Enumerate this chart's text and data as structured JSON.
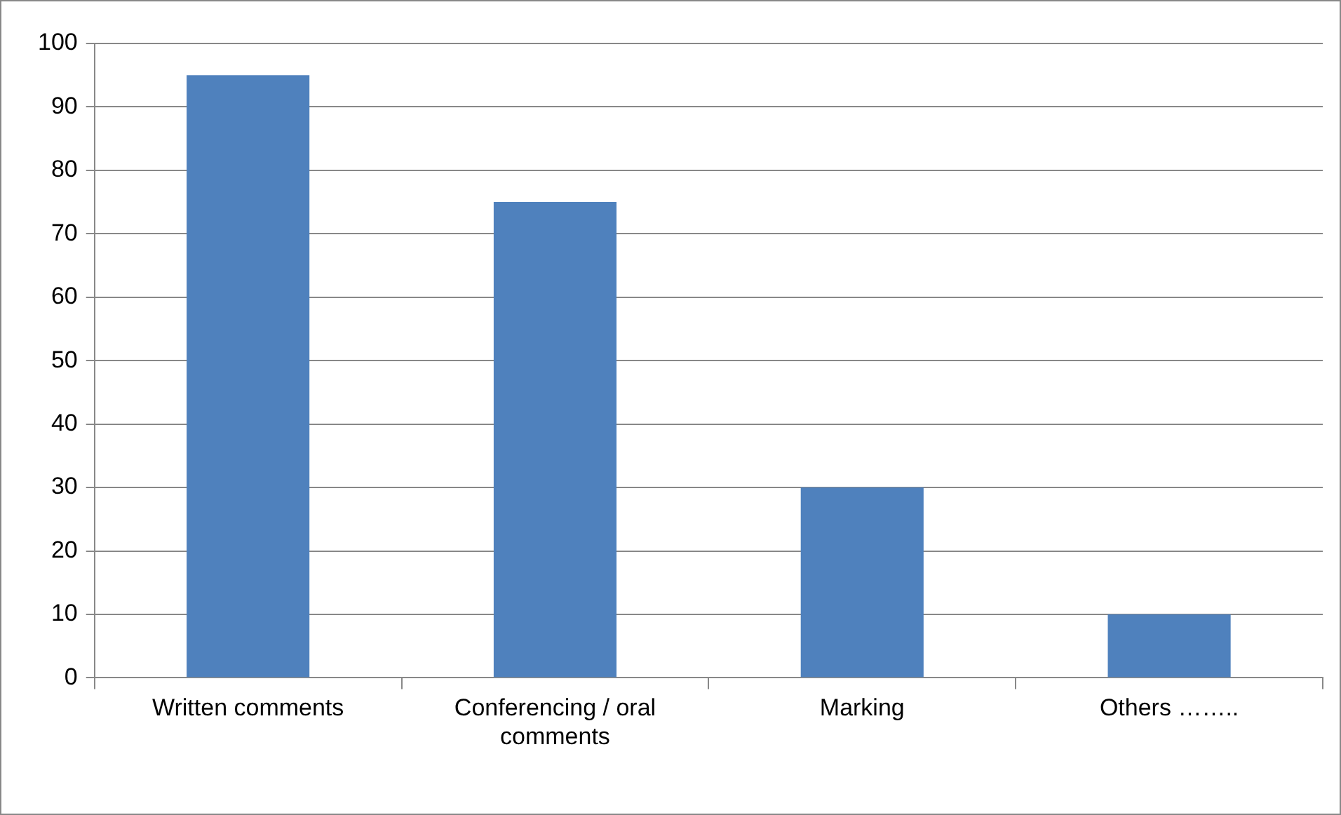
{
  "chart_data": {
    "type": "bar",
    "categories": [
      "Written comments",
      "Conferencing / oral comments",
      "Marking",
      "Others …….."
    ],
    "values": [
      95,
      75,
      30,
      10
    ],
    "color": "#4f81bd",
    "ylim": [
      0,
      100
    ],
    "yticks": [
      0,
      10,
      20,
      30,
      40,
      50,
      60,
      70,
      80,
      90,
      100
    ],
    "grid": "y",
    "legend": false
  }
}
